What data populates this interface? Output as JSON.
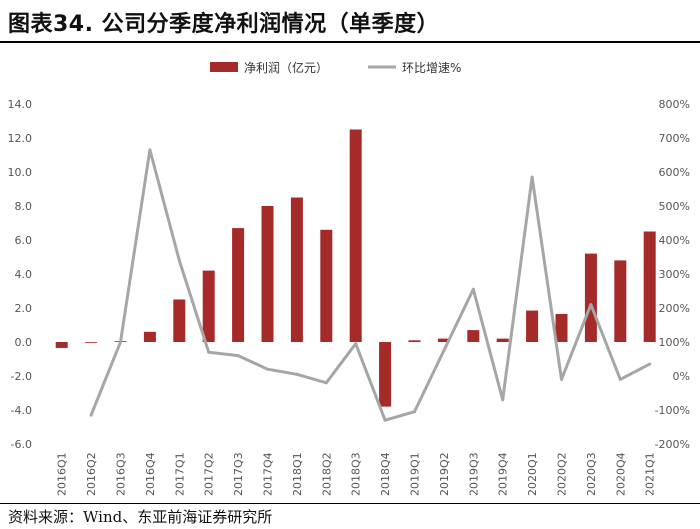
{
  "header": {
    "title": "图表34. 公司分季度净利润情况（单季度）"
  },
  "footer": {
    "source": "资料来源：Wind、东亚前海证券研究所"
  },
  "colors": {
    "bar": "#A52A2A",
    "line": "#A6A6A6",
    "text": "#555555"
  },
  "chart_data": {
    "type": "bar",
    "categories": [
      "2016Q1",
      "2016Q2",
      "2016Q3",
      "2016Q4",
      "2017Q1",
      "2017Q2",
      "2017Q3",
      "2017Q4",
      "2018Q1",
      "2018Q2",
      "2018Q3",
      "2018Q4",
      "2019Q1",
      "2019Q2",
      "2019Q3",
      "2019Q4",
      "2020Q1",
      "2020Q2",
      "2020Q3",
      "2020Q4",
      "2021Q1"
    ],
    "series": [
      {
        "name": "净利润（亿元）",
        "kind": "bar",
        "axis": "left",
        "values": [
          -0.35,
          0.0,
          0.05,
          0.6,
          2.5,
          4.2,
          6.7,
          8.0,
          8.5,
          6.6,
          12.5,
          -3.8,
          0.1,
          0.2,
          0.7,
          0.2,
          1.85,
          1.65,
          5.2,
          4.8,
          6.5
        ]
      },
      {
        "name": "环比增速%",
        "kind": "line",
        "axis": "right",
        "values": [
          null,
          -115,
          100,
          665,
          340,
          70,
          60,
          20,
          5,
          -20,
          95,
          -130,
          -105,
          75,
          255,
          -70,
          585,
          -10,
          210,
          -10,
          35
        ]
      }
    ],
    "left_axis": {
      "ylim": [
        -6,
        14
      ],
      "ticks": [
        "-6.0",
        "-4.0",
        "-2.0",
        "0.0",
        "2.0",
        "4.0",
        "6.0",
        "8.0",
        "10.0",
        "12.0",
        "14.0"
      ]
    },
    "right_axis": {
      "ylim": [
        -200,
        800
      ],
      "ticks": [
        "-200%",
        "-100%",
        "0%",
        "100%",
        "200%",
        "300%",
        "400%",
        "500%",
        "600%",
        "700%",
        "800%"
      ]
    },
    "legend_position": "top-center",
    "grid": false
  }
}
